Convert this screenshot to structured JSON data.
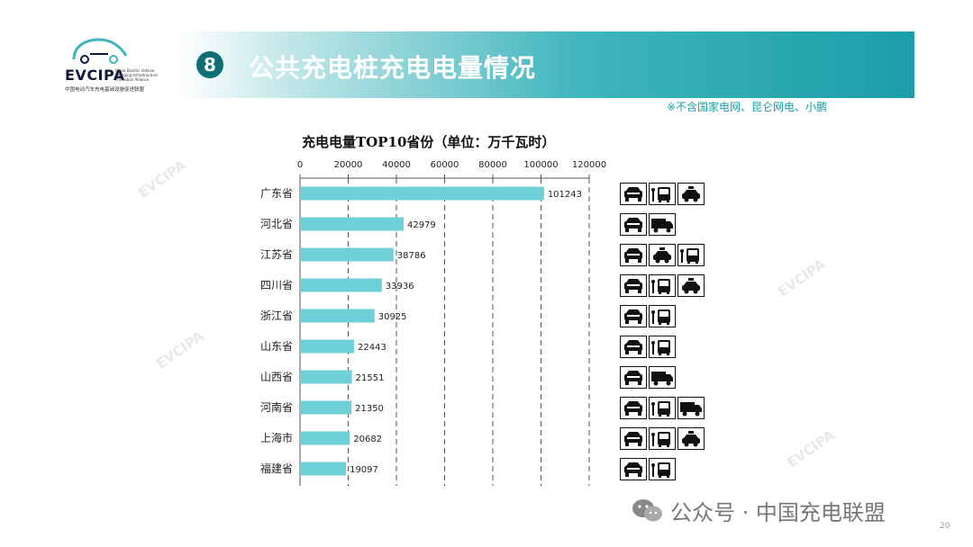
{
  "header": {
    "logo_text": "EVCIPA",
    "logo_subtitle": "China Electric Vehicle Charging Infrastructure Promotion Alliance",
    "logo_cn": "中国电动汽车充电基础设施促进联盟",
    "section_number": "8",
    "title": "公共充电桩充电电量情况",
    "note": "※不含国家电网、昆仑网电、小鹏"
  },
  "watermark": "EVCIPA",
  "chart_data": {
    "type": "bar",
    "orientation": "horizontal",
    "title": "充电电量TOP10省份（单位：万千瓦时）",
    "categories": [
      "广东省",
      "河北省",
      "江苏省",
      "四川省",
      "浙江省",
      "山东省",
      "山西省",
      "河南省",
      "上海市",
      "福建省"
    ],
    "values": [
      101243,
      42979,
      38786,
      33936,
      30925,
      22443,
      21551,
      21350,
      20682,
      19097
    ],
    "xlim": [
      0,
      120000
    ],
    "xticks": [
      "0",
      "20000",
      "40000",
      "60000",
      "80000",
      "100000",
      "120000"
    ],
    "axis_position": "top",
    "grid": "dashed vertical",
    "bar_color": "#6ecfd8"
  },
  "vehicle_icons": [
    [
      "car-icon",
      "bus-icon",
      "taxi-icon"
    ],
    [
      "car-icon",
      "truck-icon"
    ],
    [
      "car-icon",
      "taxi-icon",
      "bus-icon"
    ],
    [
      "car-icon",
      "bus-icon",
      "taxi-icon"
    ],
    [
      "car-icon",
      "bus-icon"
    ],
    [
      "car-icon",
      "bus-icon"
    ],
    [
      "car-icon",
      "truck-icon"
    ],
    [
      "car-icon",
      "bus-icon",
      "truck-icon"
    ],
    [
      "car-icon",
      "bus-icon",
      "taxi-icon"
    ],
    [
      "car-icon",
      "bus-icon"
    ]
  ],
  "footer": {
    "text": "公众号 · 中国充电联盟",
    "page_number": "20"
  }
}
